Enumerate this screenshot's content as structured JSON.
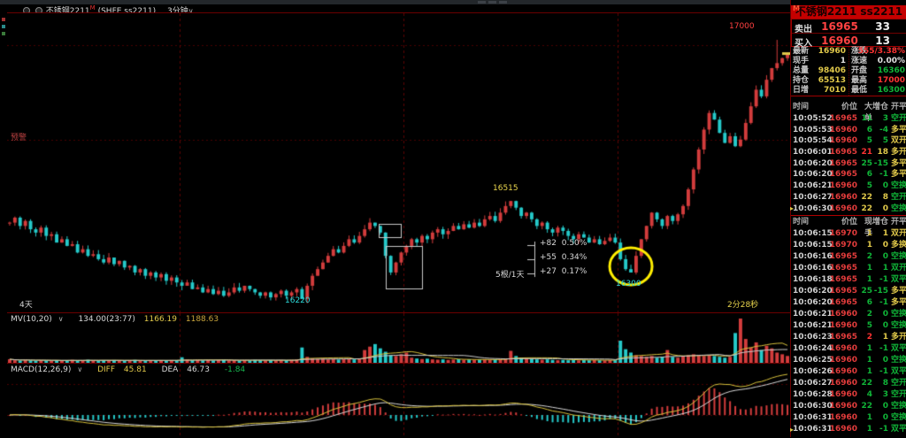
{
  "titlebar": {
    "symbol": "不锈钢2211",
    "marker": "M",
    "exchange": "(SHFE ss2211)",
    "period": "3分钟",
    "caret": "∨"
  },
  "chart": {
    "range_label": "4天",
    "countdown": "2分28秒",
    "alert_label": "预警",
    "volume_line": {
      "name": "MV(10,20)",
      "caret": "∨",
      "cur": "134.00(23:77)",
      "ma1": "1166.19",
      "ma2": "1188.63"
    },
    "macd_line": {
      "name": "MACD(12,26,9)",
      "caret": "∨",
      "diff_label": "DIFF",
      "diff": "45.81",
      "dea_label": "DEA",
      "dea": "46.73",
      "hist": "-1.84"
    },
    "measure": {
      "rows": [
        {
          "d": "+82",
          "p": "0.50%"
        },
        {
          "d": "+55",
          "p": "0.34%"
        },
        {
          "d": "+27",
          "p": "0.17%"
        }
      ],
      "span": "5根/1天"
    }
  },
  "chart_data": {
    "type": "candlestick",
    "period": "3min",
    "visible_range_days": 4,
    "price_range": [
      16180,
      17080
    ],
    "key_levels": {
      "peak": "16515",
      "period_low": "16220",
      "day_low": "16300",
      "day_high": "17000"
    },
    "closes": [
      16450,
      16465,
      16440,
      16455,
      16430,
      16420,
      16435,
      16410,
      16415,
      16390,
      16400,
      16380,
      16385,
      16360,
      16370,
      16350,
      16355,
      16340,
      16330,
      16345,
      16325,
      16335,
      16315,
      16320,
      16300,
      16310,
      16290,
      16300,
      16285,
      16295,
      16275,
      16285,
      16270,
      16260,
      16270,
      16250,
      16255,
      16240,
      16250,
      16235,
      16245,
      16230,
      16240,
      16255,
      16245,
      16260,
      16250,
      16240,
      16230,
      16240,
      16225,
      16235,
      16245,
      16230,
      16240,
      16250,
      16220,
      16260,
      16290,
      16310,
      16330,
      16350,
      16370,
      16360,
      16380,
      16400,
      16390,
      16410,
      16430,
      16450,
      16440,
      16420,
      16350,
      16300,
      16330,
      16360,
      16380,
      16400,
      16390,
      16410,
      16400,
      16420,
      16430,
      16415,
      16425,
      16440,
      16430,
      16445,
      16435,
      16450,
      16440,
      16460,
      16470,
      16455,
      16480,
      16500,
      16515,
      16495,
      16470,
      16480,
      16460,
      16440,
      16450,
      16430,
      16420,
      16435,
      16425,
      16410,
      16400,
      16415,
      16405,
      16390,
      16400,
      16385,
      16395,
      16405,
      16390,
      16340,
      16310,
      16300,
      16350,
      16400,
      16440,
      16480,
      16460,
      16440,
      16470,
      16455,
      16475,
      16500,
      16550,
      16610,
      16670,
      16730,
      16780,
      16760,
      16720,
      16690,
      16710,
      16680,
      16700,
      16750,
      16800,
      16850,
      16830,
      16880,
      16915,
      16930,
      16945,
      16960
    ],
    "volumes": [
      420,
      300,
      260,
      340,
      280,
      240,
      300,
      260,
      220,
      280,
      240,
      300,
      340,
      260,
      300,
      360,
      280,
      240,
      300,
      260,
      320,
      280,
      240,
      300,
      340,
      260,
      220,
      280,
      240,
      300,
      260,
      320,
      280,
      650,
      380,
      300,
      340,
      280,
      320,
      260,
      300,
      340,
      280,
      300,
      260,
      320,
      280,
      340,
      300,
      260,
      300,
      280,
      320,
      300,
      340,
      380,
      1800,
      700,
      520,
      440,
      480,
      400,
      440,
      380,
      420,
      460,
      400,
      500,
      1500,
      1900,
      2200,
      1700,
      1300,
      900,
      800,
      1000,
      1200,
      600,
      500,
      440,
      480,
      400,
      360,
      400,
      340,
      380,
      420,
      360,
      400,
      340,
      380,
      420,
      360,
      400,
      440,
      500,
      1400,
      800,
      600,
      500,
      440,
      400,
      360,
      400,
      340,
      300,
      340,
      300,
      340,
      280,
      320,
      300,
      340,
      300,
      280,
      320,
      300,
      2600,
      1600,
      1200,
      900,
      800,
      700,
      800,
      600,
      700,
      1500,
      700,
      600,
      800,
      900,
      1000,
      900,
      800,
      900,
      800,
      700,
      600,
      700,
      3500,
      5200,
      2800,
      1800,
      2400,
      1500,
      2000,
      1700,
      1200,
      1000,
      800
    ],
    "day_breaks": [
      33,
      76,
      117
    ],
    "high_override": {
      "147": 17000
    },
    "low_override": {
      "56": 16220,
      "119": 16300
    },
    "circle_index": 119,
    "indicators": {
      "volume_ma": [
        10,
        20
      ],
      "macd": [
        12,
        26,
        9
      ]
    },
    "colors": {
      "up": "#d23c3c",
      "down": "#25c9c9",
      "diff_line": "#d8c23c",
      "dea_line": "#d8d8d8",
      "vol_ma1": "#d8c23c",
      "vol_ma2": "#cccccc",
      "grid": "#4a0000",
      "daybreak": "#5c0505"
    }
  },
  "panel": {
    "header": {
      "title": "不锈钢2211  ss2211",
      "marker": "M"
    },
    "ask": {
      "label": "卖出",
      "price": "16965",
      "qty": "33"
    },
    "bid": {
      "label": "买入",
      "price": "16960",
      "qty": "13"
    },
    "info": [
      {
        "l1": "最新",
        "v1": "16960",
        "l2": "涨跌",
        "v2": "555/3.38%"
      },
      {
        "l1": "现手",
        "v1": "1",
        "l2": "涨速",
        "v2": "0.00%"
      },
      {
        "l1": "总量",
        "v1": "98406",
        "l2": "开盘",
        "v2": "16360"
      },
      {
        "l1": "持仓",
        "v1": "65513",
        "l2": "最高",
        "v2": "17000"
      },
      {
        "l1": "日增",
        "v1": "7010",
        "l2": "最低",
        "v2": "16300"
      }
    ],
    "table1": {
      "headers": [
        "时间",
        "价位",
        "大单",
        "增仓",
        "开平"
      ],
      "rows": [
        [
          "10:05:52",
          "16965",
          "11",
          "3",
          "空开",
          "g",
          "g",
          "g",
          ""
        ],
        [
          "10:05:53",
          "16960",
          "6",
          "-4",
          "多平",
          "g",
          "g",
          "y",
          ""
        ],
        [
          "10:05:54",
          "16960",
          "5",
          "5",
          "双开",
          "g",
          "g",
          "y",
          ""
        ],
        [
          "10:06:01",
          "16965",
          "21",
          "18",
          "多开",
          "r",
          "y",
          "y",
          ""
        ],
        [
          "10:06:20",
          "16965",
          "25",
          "-15",
          "多平",
          "g",
          "g",
          "y",
          ""
        ],
        [
          "10:06:20",
          "16965",
          "6",
          "-1",
          "多平",
          "g",
          "g",
          "y",
          ""
        ],
        [
          "10:06:21",
          "16960",
          "5",
          "0",
          "空换",
          "g",
          "g",
          "g",
          ""
        ],
        [
          "10:06:27",
          "16960",
          "22",
          "8",
          "空开",
          "y",
          "y",
          "g",
          ""
        ],
        [
          "10:06:30",
          "16960",
          "22",
          "0",
          "空换",
          "y",
          "y",
          "g",
          "m"
        ]
      ]
    },
    "table2": {
      "headers": [
        "时间",
        "价位",
        "现手",
        "增仓",
        "开平"
      ],
      "rows": [
        [
          "10:06:15",
          "16970",
          "1",
          "1",
          "双开",
          "y",
          "y",
          "y",
          ""
        ],
        [
          "10:06:15",
          "16970",
          "1",
          "0",
          "多换",
          "y",
          "y",
          "y",
          ""
        ],
        [
          "10:06:16",
          "16965",
          "2",
          "0",
          "空换",
          "g",
          "g",
          "g",
          ""
        ],
        [
          "10:06:16",
          "16965",
          "1",
          "1",
          "双开",
          "g",
          "g",
          "g",
          ""
        ],
        [
          "10:06:18",
          "16965",
          "1",
          "-1",
          "双平",
          "g",
          "g",
          "g",
          ""
        ],
        [
          "10:06:20",
          "16965",
          "25",
          "-15",
          "多平",
          "g",
          "g",
          "y",
          ""
        ],
        [
          "10:06:20",
          "16965",
          "6",
          "-1",
          "多平",
          "g",
          "g",
          "y",
          ""
        ],
        [
          "10:06:21",
          "16960",
          "2",
          "0",
          "空换",
          "g",
          "g",
          "g",
          ""
        ],
        [
          "10:06:21",
          "16960",
          "5",
          "0",
          "空换",
          "g",
          "g",
          "g",
          ""
        ],
        [
          "10:06:23",
          "16965",
          "2",
          "1",
          "多开",
          "r",
          "y",
          "y",
          ""
        ],
        [
          "10:06:24",
          "16960",
          "1",
          "-1",
          "双平",
          "g",
          "g",
          "g",
          ""
        ],
        [
          "10:06:25",
          "16960",
          "1",
          "0",
          "空换",
          "g",
          "g",
          "g",
          ""
        ],
        [
          "10:06:26",
          "16960",
          "1",
          "-1",
          "双平",
          "g",
          "g",
          "g",
          ""
        ],
        [
          "10:06:27",
          "16960",
          "22",
          "8",
          "空开",
          "g",
          "g",
          "g",
          ""
        ],
        [
          "10:06:28",
          "16960",
          "4",
          "3",
          "空开",
          "g",
          "g",
          "g",
          ""
        ],
        [
          "10:06:30",
          "16960",
          "22",
          "0",
          "空换",
          "g",
          "g",
          "g",
          ""
        ],
        [
          "10:06:31",
          "16960",
          "1",
          "0",
          "空换",
          "g",
          "g",
          "g",
          ""
        ],
        [
          "10:06:31",
          "16960",
          "1",
          "-1",
          "双平",
          "g",
          "g",
          "g",
          "m"
        ]
      ]
    }
  }
}
